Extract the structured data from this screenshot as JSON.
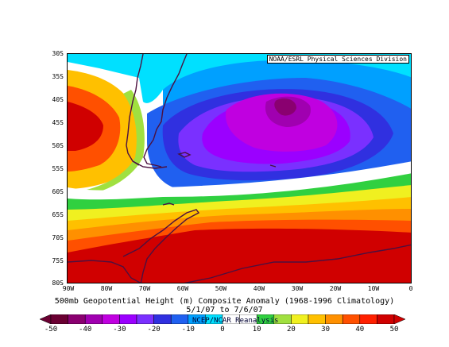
{
  "credit": "NOAA/ESRL Physical Sciences Division",
  "latitude_labels": [
    "30S",
    "35S",
    "40S",
    "45S",
    "50S",
    "55S",
    "60S",
    "65S",
    "70S",
    "75S",
    "80S"
  ],
  "longitude_labels": [
    "90W",
    "80W",
    "70W",
    "60W",
    "50W",
    "40W",
    "30W",
    "20W",
    "10W",
    "0"
  ],
  "caption": {
    "line1": "500mb Geopotential Height (m) Composite Anomaly (1968-1996 Climatology)",
    "line2": "5/1/07 to 7/6/07"
  },
  "colorbar": {
    "tick_labels": [
      "-50",
      "-40",
      "-30",
      "-20",
      "-10",
      "0",
      "10",
      "20",
      "30",
      "40",
      "50"
    ],
    "colors": [
      "#6a0032",
      "#8a0070",
      "#a000b0",
      "#c000e0",
      "#9b00ff",
      "#7a30ff",
      "#3030e0",
      "#2060f0",
      "#00a0ff",
      "#00e0ff",
      "#ffffff",
      "#ffffff",
      "#30d040",
      "#a0e040",
      "#f0f020",
      "#ffc000",
      "#ff9000",
      "#ff5000",
      "#ff2000",
      "#d00000"
    ]
  },
  "source": "NCEP/NCAR Reanalysis",
  "map_colors": {
    "bg": "#ffffff",
    "coast": "#4b1040"
  }
}
